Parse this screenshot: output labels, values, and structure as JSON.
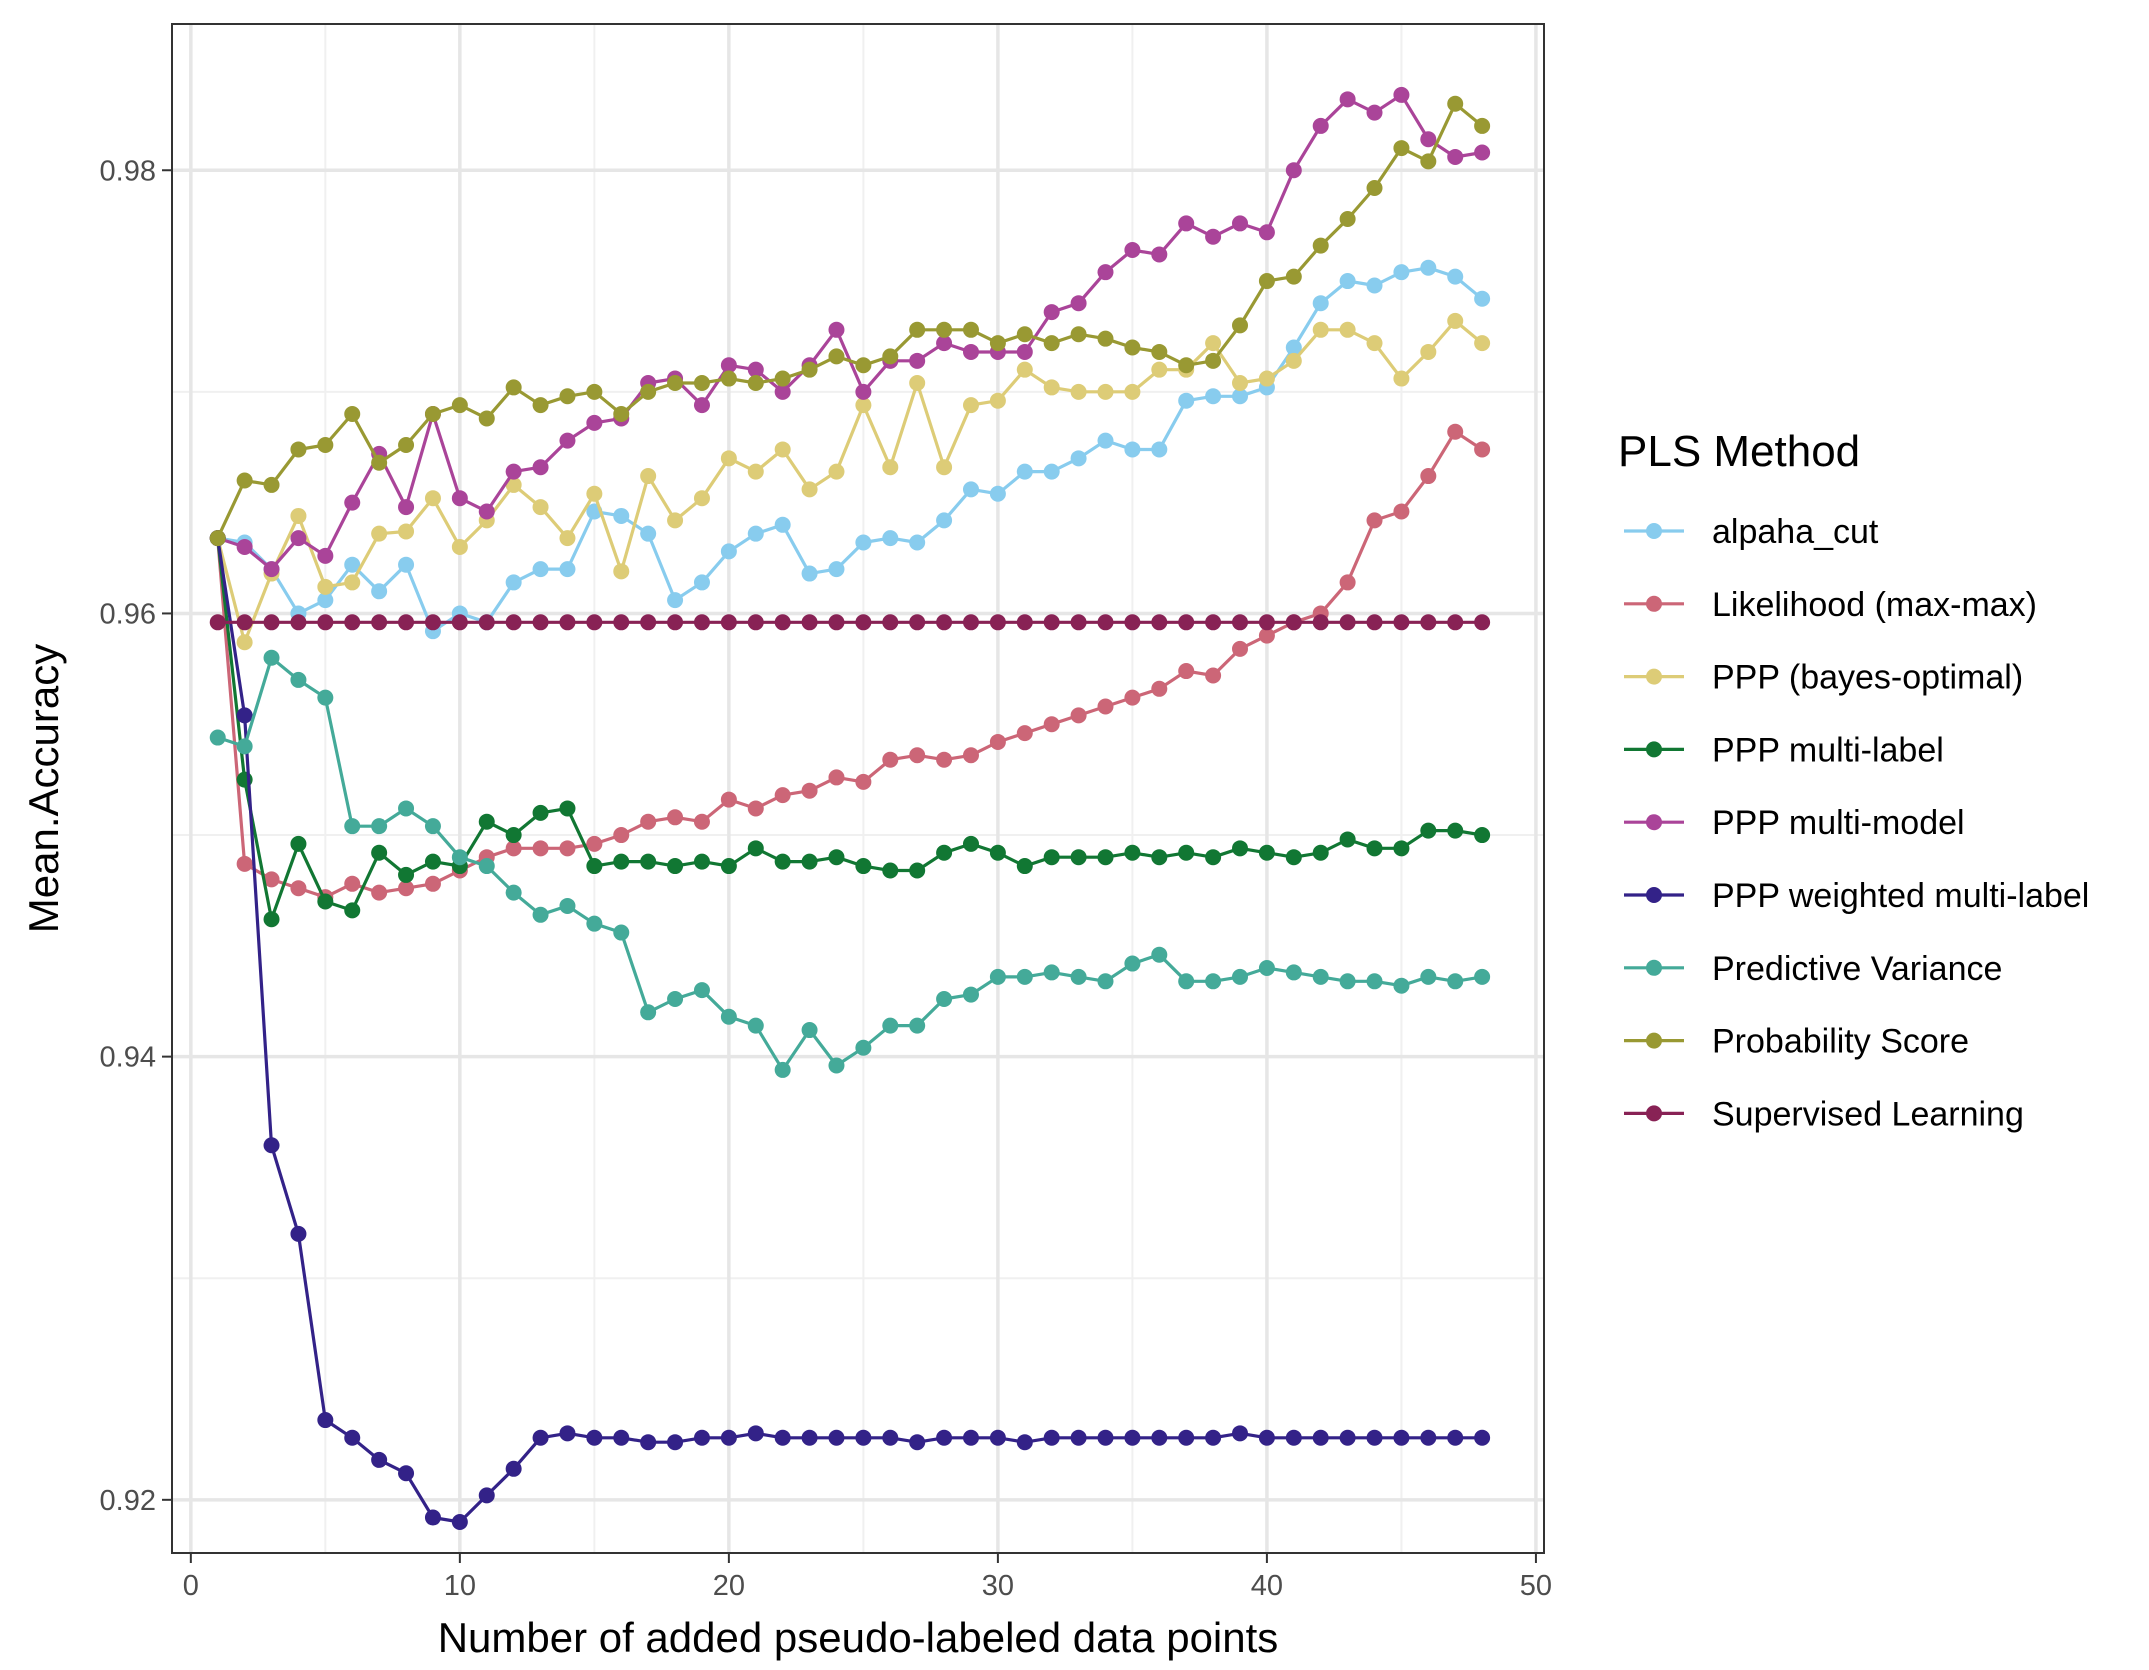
{
  "chart_data": {
    "type": "line",
    "xlabel": "Number of added pseudo-labeled data points",
    "ylabel": "Mean.Accuracy",
    "xlim": [
      -0.7,
      50.3
    ],
    "ylim": [
      0.9176,
      0.9866
    ],
    "x_ticks": [
      0,
      10,
      20,
      30,
      40,
      50
    ],
    "y_ticks": [
      0.92,
      0.94,
      0.96,
      0.98
    ],
    "x_tick_labels": [
      "0",
      "10",
      "20",
      "30",
      "40",
      "50"
    ],
    "y_tick_labels": [
      "0.92",
      "0.94",
      "0.96",
      "0.98"
    ],
    "grid": true,
    "legend_title": "PLS Method",
    "legend_position": "right",
    "x": [
      1,
      2,
      3,
      4,
      5,
      6,
      7,
      8,
      9,
      10,
      11,
      12,
      13,
      14,
      15,
      16,
      17,
      18,
      19,
      20,
      21,
      22,
      23,
      24,
      25,
      26,
      27,
      28,
      29,
      30,
      31,
      32,
      33,
      34,
      35,
      36,
      37,
      38,
      39,
      40,
      41,
      42,
      43,
      44,
      45,
      46,
      47,
      48
    ],
    "series": [
      {
        "name": "alpaha_cut",
        "color": "#88CCEE",
        "values": [
          0.9634,
          0.9632,
          0.962,
          0.96,
          0.9606,
          0.9622,
          0.961,
          0.9622,
          0.9592,
          0.96,
          0.9596,
          0.9614,
          0.962,
          0.962,
          0.9646,
          0.9644,
          0.9636,
          0.9606,
          0.9614,
          0.9628,
          0.9636,
          0.964,
          0.9618,
          0.962,
          0.9632,
          0.9634,
          0.9632,
          0.9642,
          0.9656,
          0.9654,
          0.9664,
          0.9664,
          0.967,
          0.9678,
          0.9674,
          0.9674,
          0.9696,
          0.9698,
          0.9698,
          0.9702,
          0.972,
          0.974,
          0.975,
          0.9748,
          0.9754,
          0.9756,
          0.9752,
          0.9742
        ]
      },
      {
        "name": "Likelihood (max-max)",
        "color": "#CC6677",
        "values": [
          0.9634,
          0.9487,
          0.948,
          0.9476,
          0.9472,
          0.9478,
          0.9474,
          0.9476,
          0.9478,
          0.9484,
          0.949,
          0.9494,
          0.9494,
          0.9494,
          0.9496,
          0.95,
          0.9506,
          0.9508,
          0.9506,
          0.9516,
          0.9512,
          0.9518,
          0.952,
          0.9526,
          0.9524,
          0.9534,
          0.9536,
          0.9534,
          0.9536,
          0.9542,
          0.9546,
          0.955,
          0.9554,
          0.9558,
          0.9562,
          0.9566,
          0.9574,
          0.9572,
          0.9584,
          0.959,
          0.9596,
          0.96,
          0.9614,
          0.9642,
          0.9646,
          0.9662,
          0.9682,
          0.9674
        ]
      },
      {
        "name": "PPP (bayes-optimal)",
        "color": "#DDCC77",
        "values": [
          0.9634,
          0.9587,
          0.9618,
          0.9644,
          0.9612,
          0.9614,
          0.9636,
          0.9637,
          0.9652,
          0.963,
          0.9642,
          0.9658,
          0.9648,
          0.9634,
          0.9654,
          0.9619,
          0.9662,
          0.9642,
          0.9652,
          0.967,
          0.9664,
          0.9674,
          0.9656,
          0.9664,
          0.9694,
          0.9666,
          0.9704,
          0.9666,
          0.9694,
          0.9696,
          0.971,
          0.9702,
          0.97,
          0.97,
          0.97,
          0.971,
          0.971,
          0.9722,
          0.9704,
          0.9706,
          0.9714,
          0.9728,
          0.9728,
          0.9722,
          0.9706,
          0.9718,
          0.9732,
          0.9722
        ]
      },
      {
        "name": "PPP multi-label",
        "color": "#117733",
        "values": [
          0.9634,
          0.9525,
          0.9462,
          0.9496,
          0.947,
          0.9466,
          0.9492,
          0.9482,
          0.9488,
          0.9486,
          0.9506,
          0.95,
          0.951,
          0.9512,
          0.9486,
          0.9488,
          0.9488,
          0.9486,
          0.9488,
          0.9486,
          0.9494,
          0.9488,
          0.9488,
          0.949,
          0.9486,
          0.9484,
          0.9484,
          0.9492,
          0.9496,
          0.9492,
          0.9486,
          0.949,
          0.949,
          0.949,
          0.9492,
          0.949,
          0.9492,
          0.949,
          0.9494,
          0.9492,
          0.949,
          0.9492,
          0.9498,
          0.9494,
          0.9494,
          0.9502,
          0.9502,
          0.95
        ]
      },
      {
        "name": "PPP multi-model",
        "color": "#AA4499",
        "values": [
          0.9634,
          0.963,
          0.962,
          0.9634,
          0.9626,
          0.965,
          0.9672,
          0.9648,
          0.969,
          0.9652,
          0.9646,
          0.9664,
          0.9666,
          0.9678,
          0.9686,
          0.9688,
          0.9704,
          0.9706,
          0.9694,
          0.9712,
          0.971,
          0.97,
          0.9712,
          0.9728,
          0.97,
          0.9714,
          0.9714,
          0.9722,
          0.9718,
          0.9718,
          0.9718,
          0.9736,
          0.974,
          0.9754,
          0.9764,
          0.9762,
          0.9776,
          0.977,
          0.9776,
          0.9772,
          0.98,
          0.982,
          0.9832,
          0.9826,
          0.9834,
          0.9814,
          0.9806,
          0.9808
        ]
      },
      {
        "name": "PPP weighted multi-label",
        "color": "#332288",
        "values": [
          0.9634,
          0.9554,
          0.936,
          0.932,
          0.9236,
          0.9228,
          0.9218,
          0.9212,
          0.9192,
          0.919,
          0.9202,
          0.9214,
          0.9228,
          0.923,
          0.9228,
          0.9228,
          0.9226,
          0.9226,
          0.9228,
          0.9228,
          0.923,
          0.9228,
          0.9228,
          0.9228,
          0.9228,
          0.9228,
          0.9226,
          0.9228,
          0.9228,
          0.9228,
          0.9226,
          0.9228,
          0.9228,
          0.9228,
          0.9228,
          0.9228,
          0.9228,
          0.9228,
          0.923,
          0.9228,
          0.9228,
          0.9228,
          0.9228,
          0.9228,
          0.9228,
          0.9228,
          0.9228,
          0.9228
        ]
      },
      {
        "name": "Predictive Variance",
        "color": "#44AA99",
        "values": [
          0.9544,
          0.954,
          0.958,
          0.957,
          0.9562,
          0.9504,
          0.9504,
          0.9512,
          0.9504,
          0.949,
          0.9486,
          0.9474,
          0.9464,
          0.9468,
          0.946,
          0.9456,
          0.942,
          0.9426,
          0.943,
          0.9418,
          0.9414,
          0.9394,
          0.9412,
          0.9396,
          0.9404,
          0.9414,
          0.9414,
          0.9426,
          0.9428,
          0.9436,
          0.9436,
          0.9438,
          0.9436,
          0.9434,
          0.9442,
          0.9446,
          0.9434,
          0.9434,
          0.9436,
          0.944,
          0.9438,
          0.9436,
          0.9434,
          0.9434,
          0.9432,
          0.9436,
          0.9434,
          0.9436
        ]
      },
      {
        "name": "Probability Score",
        "color": "#999933",
        "values": [
          0.9634,
          0.966,
          0.9658,
          0.9674,
          0.9676,
          0.969,
          0.9668,
          0.9676,
          0.969,
          0.9694,
          0.9688,
          0.9702,
          0.9694,
          0.9698,
          0.97,
          0.969,
          0.97,
          0.9704,
          0.9704,
          0.9706,
          0.9704,
          0.9706,
          0.971,
          0.9716,
          0.9712,
          0.9716,
          0.9728,
          0.9728,
          0.9728,
          0.9722,
          0.9726,
          0.9722,
          0.9726,
          0.9724,
          0.972,
          0.9718,
          0.9712,
          0.9714,
          0.973,
          0.975,
          0.9752,
          0.9766,
          0.9778,
          0.9792,
          0.981,
          0.9804,
          0.983,
          0.982
        ]
      },
      {
        "name": "Supervised Learning",
        "color": "#882255",
        "values": [
          0.9596,
          0.9596,
          0.9596,
          0.9596,
          0.9596,
          0.9596,
          0.9596,
          0.9596,
          0.9596,
          0.9596,
          0.9596,
          0.9596,
          0.9596,
          0.9596,
          0.9596,
          0.9596,
          0.9596,
          0.9596,
          0.9596,
          0.9596,
          0.9596,
          0.9596,
          0.9596,
          0.9596,
          0.9596,
          0.9596,
          0.9596,
          0.9596,
          0.9596,
          0.9596,
          0.9596,
          0.9596,
          0.9596,
          0.9596,
          0.9596,
          0.9596,
          0.9596,
          0.9596,
          0.9596,
          0.9596,
          0.9596,
          0.9596,
          0.9596,
          0.9596,
          0.9596,
          0.9596,
          0.9596,
          0.9596
        ]
      }
    ]
  }
}
